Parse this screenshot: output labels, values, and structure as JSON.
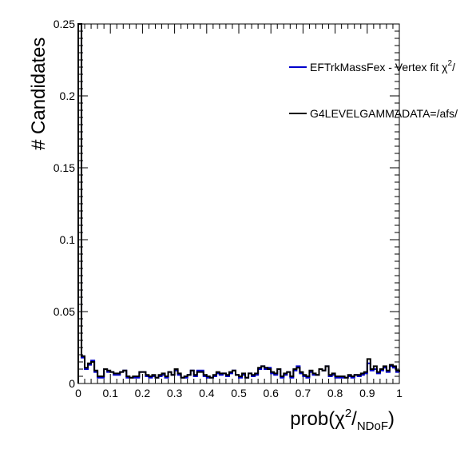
{
  "chart_data": {
    "type": "histogram",
    "title": "",
    "xlabel": "prob(χ²/NDoF)",
    "xlabel_parts": {
      "main": "prob(χ",
      "sup": "2",
      "slash": "/",
      "sub": "NDoF",
      "close": ")"
    },
    "ylabel": "# Candidates",
    "xlim": [
      0,
      1
    ],
    "ylim": [
      0,
      0.25
    ],
    "x_ticks": [
      "0",
      "0.1",
      "0.2",
      "0.3",
      "0.4",
      "0.5",
      "0.6",
      "0.7",
      "0.8",
      "0.9",
      "1"
    ],
    "y_ticks": [
      "0",
      "0.05",
      "0.1",
      "0.15",
      "0.2",
      "0.25"
    ],
    "bin_width": 0.01,
    "legend_position": "top-right",
    "series": [
      {
        "name": "EFTrkMassFex - Vertex fit χ²/",
        "legend_main": "EFTrkMassFex - Vertex fit χ",
        "legend_sup": "2",
        "legend_tail": "/",
        "color": "#0000cc",
        "values": [
          0.255,
          0.018,
          0.01,
          0.013,
          0.016,
          0.008,
          0.004,
          0.004,
          0.01,
          0.008,
          0.008,
          0.006,
          0.006,
          0.008,
          0.009,
          0.004,
          0.004,
          0.004,
          0.004,
          0.008,
          0.008,
          0.005,
          0.004,
          0.005,
          0.004,
          0.005,
          0.006,
          0.004,
          0.008,
          0.006,
          0.009,
          0.006,
          0.004,
          0.004,
          0.006,
          0.009,
          0.005,
          0.009,
          0.009,
          0.005,
          0.004,
          0.004,
          0.005,
          0.007,
          0.006,
          0.007,
          0.005,
          0.007,
          0.009,
          0.006,
          0.004,
          0.006,
          0.004,
          0.007,
          0.005,
          0.006,
          0.01,
          0.012,
          0.01,
          0.011,
          0.007,
          0.006,
          0.01,
          0.004,
          0.006,
          0.008,
          0.004,
          0.009,
          0.012,
          0.007,
          0.005,
          0.004,
          0.008,
          0.006,
          0.006,
          0.01,
          0.009,
          0.012,
          0.005,
          0.006,
          0.004,
          0.004,
          0.004,
          0.004,
          0.005,
          0.004,
          0.006,
          0.005,
          0.006,
          0.007,
          0.014,
          0.009,
          0.01,
          0.007,
          0.009,
          0.011,
          0.008,
          0.012,
          0.011,
          0.008,
          0.008
        ]
      },
      {
        "name": "G4LEVELGAMMADATA=/afs/",
        "color": "#000000",
        "values": [
          0.25,
          0.019,
          0.011,
          0.014,
          0.015,
          0.009,
          0.005,
          0.005,
          0.01,
          0.009,
          0.008,
          0.007,
          0.007,
          0.008,
          0.009,
          0.005,
          0.004,
          0.005,
          0.005,
          0.008,
          0.008,
          0.006,
          0.005,
          0.006,
          0.004,
          0.006,
          0.007,
          0.005,
          0.008,
          0.006,
          0.01,
          0.007,
          0.004,
          0.005,
          0.006,
          0.009,
          0.006,
          0.008,
          0.008,
          0.006,
          0.005,
          0.004,
          0.006,
          0.008,
          0.007,
          0.007,
          0.006,
          0.008,
          0.009,
          0.006,
          0.005,
          0.007,
          0.004,
          0.007,
          0.006,
          0.007,
          0.011,
          0.012,
          0.011,
          0.01,
          0.008,
          0.007,
          0.01,
          0.005,
          0.007,
          0.008,
          0.005,
          0.01,
          0.011,
          0.008,
          0.006,
          0.005,
          0.009,
          0.007,
          0.006,
          0.01,
          0.009,
          0.012,
          0.006,
          0.007,
          0.005,
          0.005,
          0.005,
          0.004,
          0.006,
          0.005,
          0.006,
          0.006,
          0.007,
          0.008,
          0.017,
          0.01,
          0.012,
          0.008,
          0.01,
          0.012,
          0.009,
          0.013,
          0.012,
          0.009,
          0.008
        ]
      }
    ]
  }
}
